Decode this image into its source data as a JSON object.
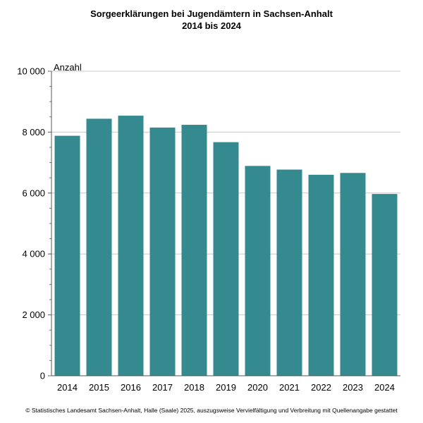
{
  "chart_data": {
    "type": "bar",
    "title": "Sorgeerklärungen bei Jugendämtern in Sachsen-Anhalt",
    "subtitle": "2014 bis 2024",
    "ylabel": "Anzahl",
    "xlabel": "",
    "categories": [
      "2014",
      "2015",
      "2016",
      "2017",
      "2018",
      "2019",
      "2020",
      "2021",
      "2022",
      "2023",
      "2024"
    ],
    "values": [
      7880,
      8440,
      8540,
      8150,
      8240,
      7670,
      6890,
      6770,
      6600,
      6660,
      5970
    ],
    "ylim": [
      0,
      10000
    ],
    "yticks": [
      0,
      2000,
      4000,
      6000,
      8000,
      10000
    ],
    "ytick_labels": [
      "0",
      "2 000",
      "4 000",
      "6 000",
      "8 000",
      "10 000"
    ],
    "grid": true,
    "bar_color": "#358a8f"
  },
  "footer": "© Statistisches Landesamt Sachsen-Anhalt, Halle (Saale) 2025, auszugsweise Vervielfältigung und Verbreitung mit Quellenangabe gestattet"
}
